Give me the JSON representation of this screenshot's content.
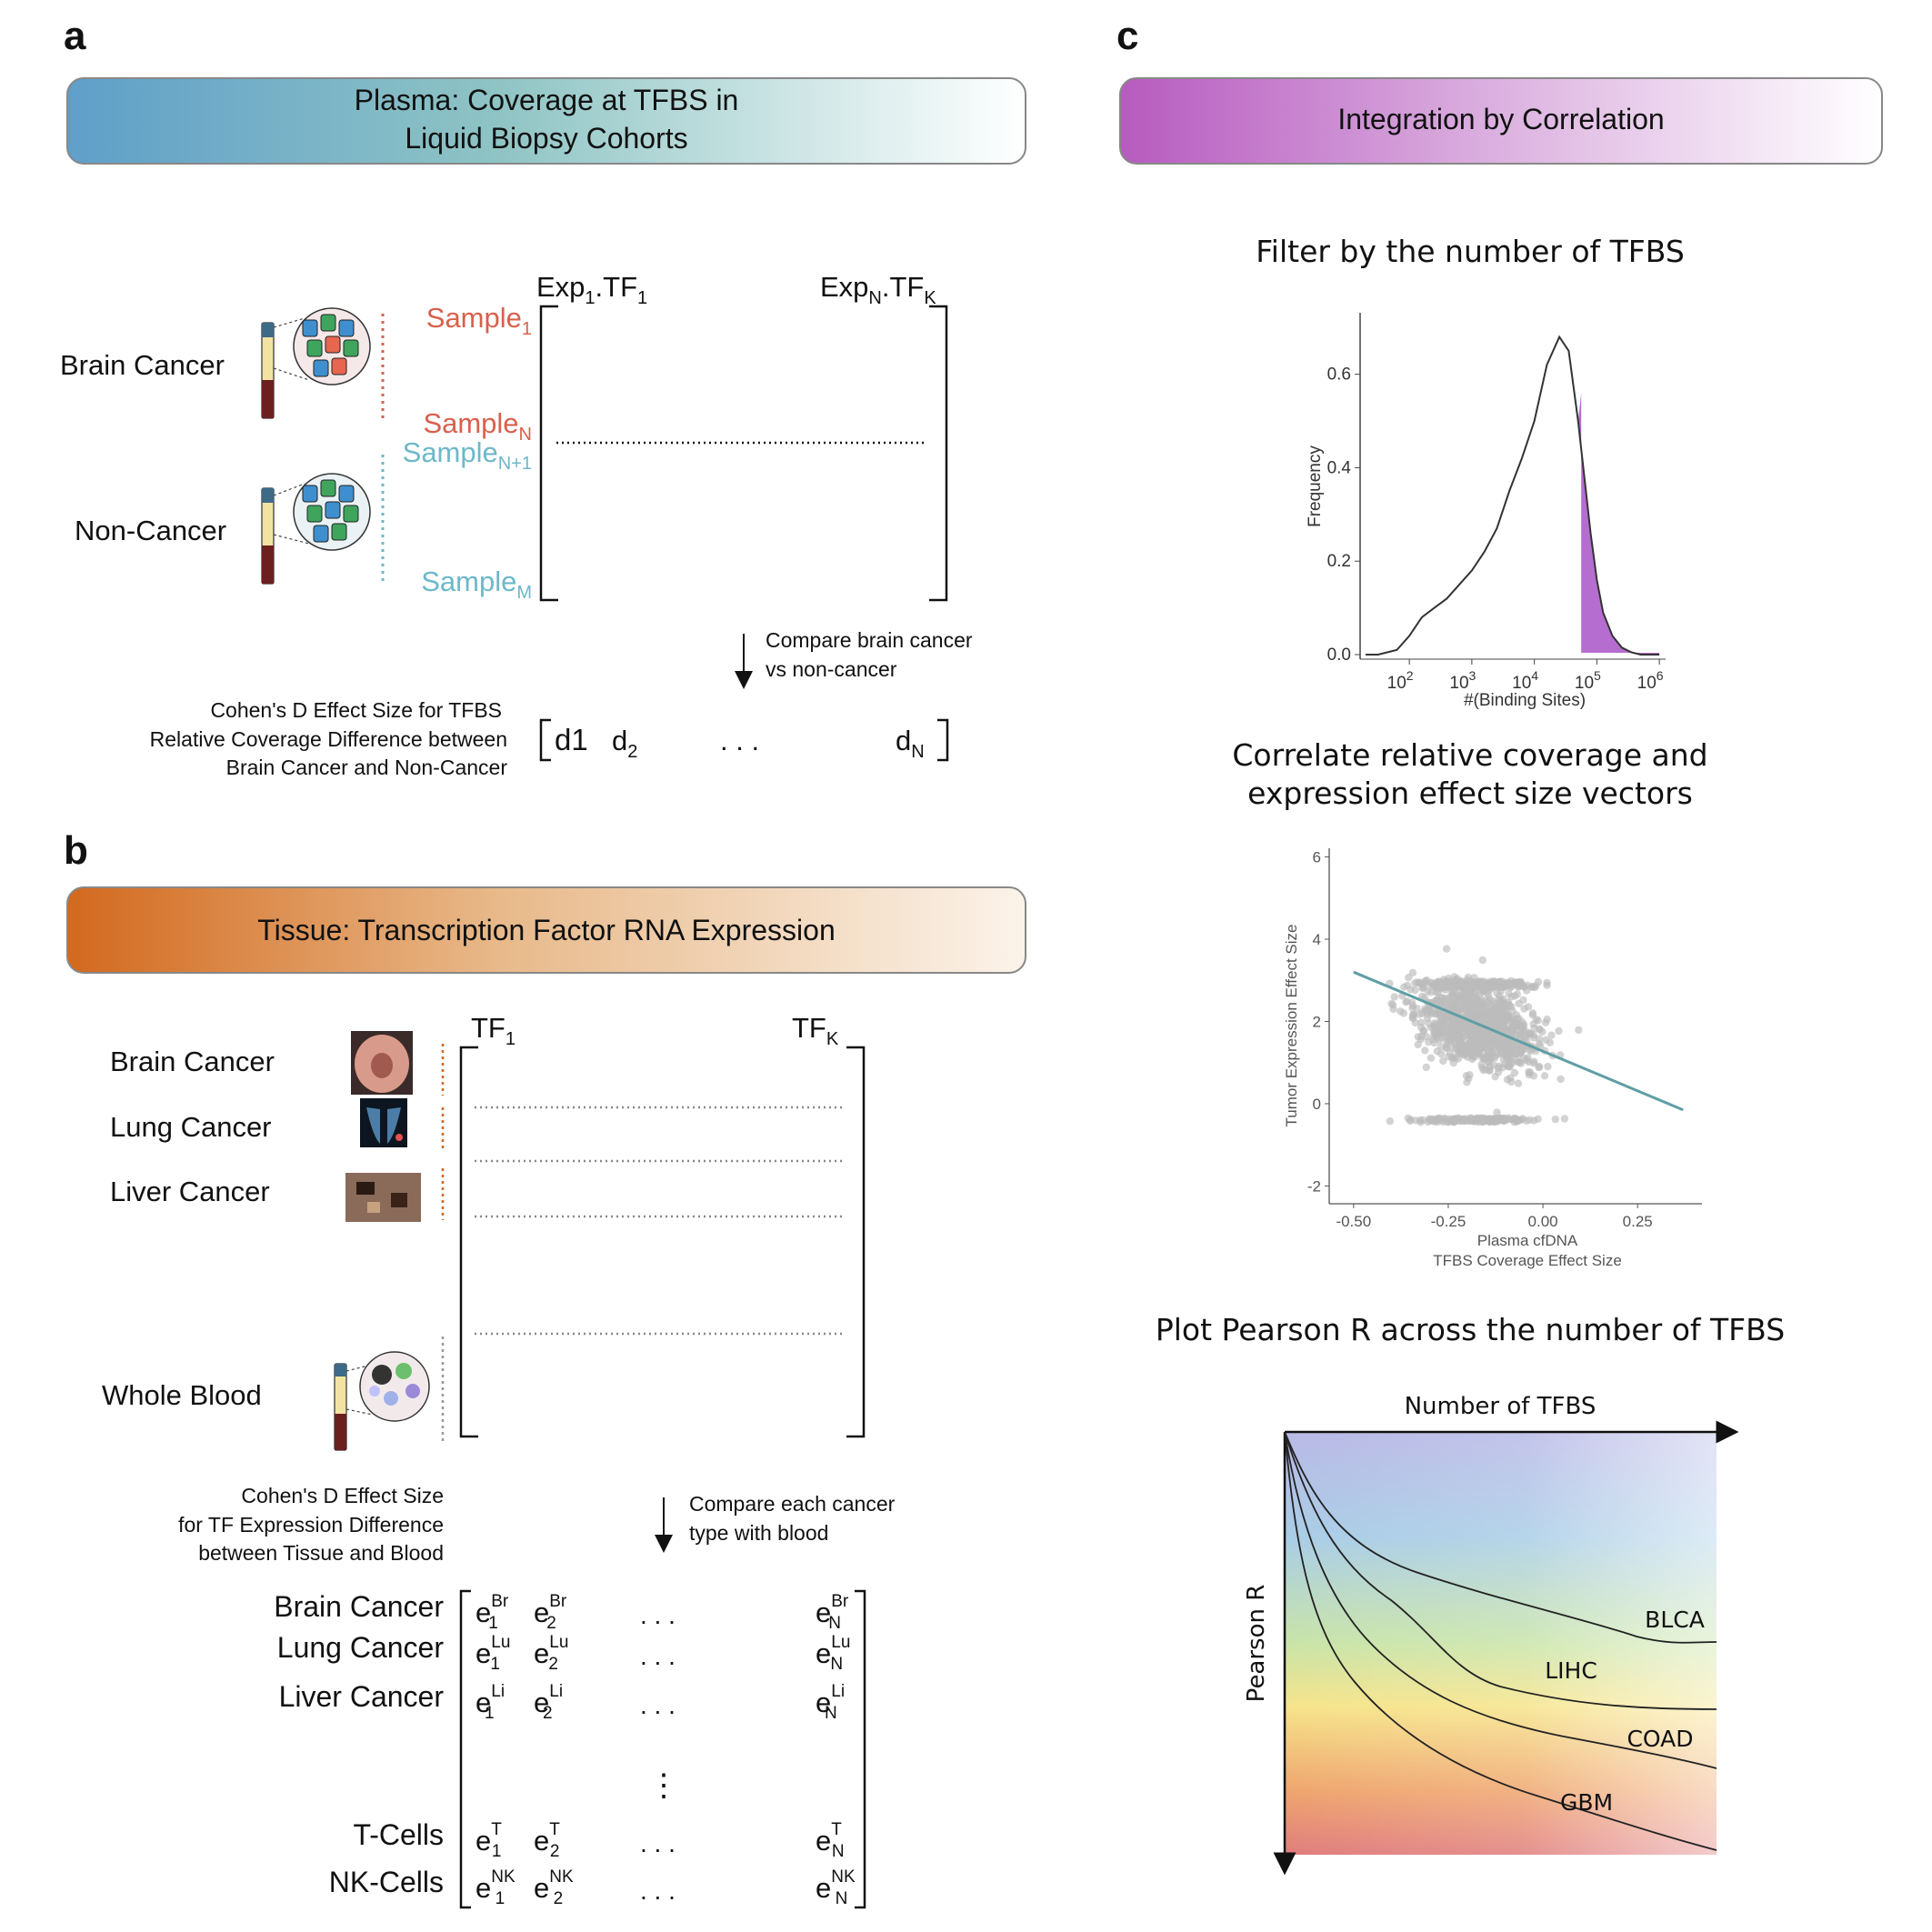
{
  "panels": {
    "a": {
      "letter": "a",
      "banner": [
        "Plasma: Coverage at TFBS in",
        "Liquid Biopsy Cohorts"
      ],
      "groups": [
        {
          "name": "Brain Cancer",
          "color": "#d9604c"
        },
        {
          "name": "Non-Cancer",
          "color": "#6cb8c9"
        }
      ],
      "samples": [
        {
          "base": "Sample",
          "sub": "1",
          "color": "#d9604c"
        },
        {
          "base": "Sample",
          "sub": "N",
          "color": "#d9604c"
        },
        {
          "base": "Sample",
          "sub": "N+1",
          "color": "#6cb8c9"
        },
        {
          "base": "Sample",
          "sub": "M",
          "color": "#6cb8c9"
        }
      ],
      "col_first": {
        "p1": "Exp",
        "s1": "1",
        "p2": ".TF",
        "s2": "1"
      },
      "col_last": {
        "p1": "Exp",
        "s1": "N",
        "p2": ".TF",
        "s2": "K"
      },
      "compare": [
        "Compare brain cancer",
        "vs non-cancer"
      ],
      "effect_label": [
        "Cohen's D Effect Size for TFBS",
        "Relative Coverage Difference between",
        "Brain Cancer and Non-Cancer"
      ],
      "vector": {
        "d1": "d1",
        "d2_base": "d",
        "d2_sub": "2",
        "dots": ". . .",
        "dn_base": "d",
        "dn_sub": "N"
      }
    },
    "b": {
      "letter": "b",
      "banner": "Tissue: Transcription Factor RNA Expression",
      "rows": [
        "Brain Cancer",
        "Lung Cancer",
        "Liver Cancer",
        "Whole Blood"
      ],
      "col_first": {
        "base": "TF",
        "sub": "1"
      },
      "col_last": {
        "base": "TF",
        "sub": "K"
      },
      "compare": [
        "Compare each cancer",
        "type with blood"
      ],
      "effect_label": [
        "Cohen's D Effect Size",
        "for TF Expression Difference",
        "between Tissue and Blood"
      ],
      "matrix_rows": [
        {
          "label": "Brain Cancer",
          "sup": "Br"
        },
        {
          "label": "Lung Cancer",
          "sup": "Lu"
        },
        {
          "label": "Liver Cancer",
          "sup": "Li"
        },
        {
          "label": "T-Cells",
          "sup": "T"
        },
        {
          "label": "NK-Cells",
          "sup": "NK"
        }
      ],
      "entry_base": "e",
      "subs": [
        "1",
        "2",
        "N"
      ],
      "hdots": ". . .",
      "vdots": "⋮"
    },
    "c": {
      "letter": "c",
      "banner": "Integration by Correlation",
      "filter_title": "Filter by the number of TFBS",
      "correlate_title": [
        "Correlate relative coverage and",
        "expression effect size vectors"
      ],
      "pearson_title": "Plot Pearson R across the number of TFBS"
    }
  },
  "chart_data": [
    {
      "type": "area",
      "title": "Filter by the number of TFBS",
      "xlabel": "#(Binding Sites)",
      "ylabel": "Frequency",
      "x_scale": "log10",
      "x_ticks": [
        "10^2",
        "10^3",
        "10^4",
        "10^5",
        "10^6"
      ],
      "y_ticks": [
        "0.0",
        "0.2",
        "0.4",
        "0.6"
      ],
      "ylim": [
        0,
        0.72
      ],
      "series": [
        {
          "log10_x": [
            1.3,
            1.5,
            1.8,
            2.0,
            2.2,
            2.4,
            2.6,
            2.8,
            3.0,
            3.2,
            3.4,
            3.6,
            3.8,
            4.0,
            4.2,
            4.4,
            4.55,
            4.7,
            4.8,
            4.9,
            5.0,
            5.1,
            5.25,
            5.4,
            5.55,
            5.7,
            6.0
          ],
          "density": [
            0.0,
            0.0,
            0.01,
            0.04,
            0.08,
            0.1,
            0.12,
            0.15,
            0.18,
            0.22,
            0.27,
            0.35,
            0.42,
            0.5,
            0.62,
            0.68,
            0.65,
            0.5,
            0.38,
            0.26,
            0.16,
            0.09,
            0.04,
            0.015,
            0.005,
            0.0,
            0.0
          ]
        }
      ],
      "highlight_from_log10_x": 4.75,
      "highlight_color": "#a855c7"
    },
    {
      "type": "scatter",
      "xlabel": "Plasma cfDNA\nTFBS Coverage Effect Size",
      "ylabel": "Tumor Expression Effect Size",
      "x_ticks": [
        "-0.50",
        "-0.25",
        "0.00",
        "0.25"
      ],
      "y_ticks": [
        "-2",
        "0",
        "2",
        "4",
        "6"
      ],
      "xlim": [
        -0.55,
        0.42
      ],
      "ylim": [
        -2.3,
        6.1
      ],
      "point_color": "#bbbbbb",
      "fit_line": {
        "x": [
          -0.5,
          0.37
        ],
        "y": [
          3.2,
          -0.15
        ],
        "color": "#5f9ea5"
      }
    },
    {
      "type": "line",
      "title": "Plot Pearson R across the number of TFBS",
      "xlabel": "Number of TFBS",
      "ylabel": "Pearson R",
      "series": [
        {
          "name": "BLCA"
        },
        {
          "name": "LIHC"
        },
        {
          "name": "COAD"
        },
        {
          "name": "GBM"
        }
      ]
    }
  ]
}
